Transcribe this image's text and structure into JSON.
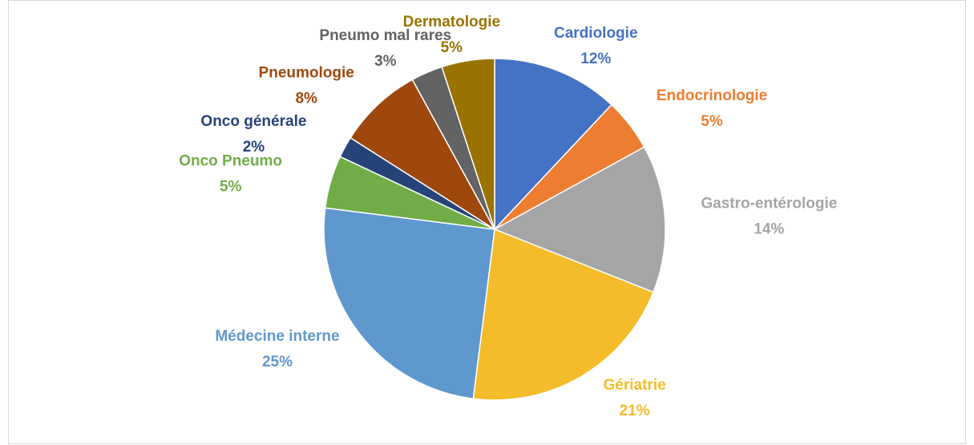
{
  "chart_data": {
    "type": "pie",
    "categories": [
      "Cardiologie",
      "Endocrinologie",
      "Gastro-entérologie",
      "Gériatrie",
      "Médecine interne",
      "Onco Pneumo",
      "Onco générale",
      "Pneumologie",
      "Pneumo mal rares",
      "Dermatologie"
    ],
    "values": [
      12,
      5,
      14,
      21,
      25,
      5,
      2,
      8,
      3,
      5
    ],
    "value_labels": [
      "12%",
      "5%",
      "14%",
      "21%",
      "25%",
      "5%",
      "2%",
      "8%",
      "3%",
      "5%"
    ],
    "colors": [
      "#4472c4",
      "#ed7d31",
      "#a5a5a5",
      "#f4bc2b",
      "#5f98cf",
      "#70ad47",
      "#264478",
      "#9e480e",
      "#636363",
      "#997300"
    ]
  }
}
